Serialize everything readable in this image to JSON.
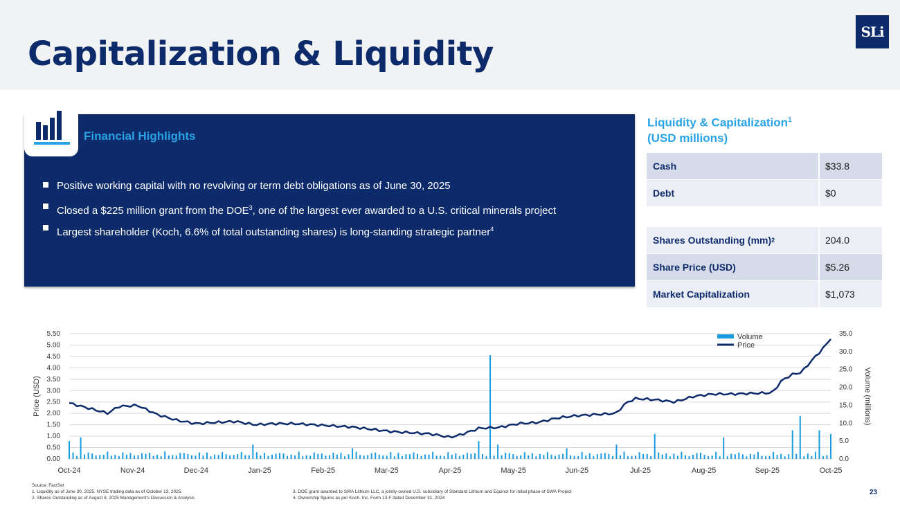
{
  "title": "Capitalization & Liquidity",
  "logo_text": "SLi",
  "highlights": {
    "title": "Financial Highlights",
    "bullets": [
      {
        "text": "Positive working capital with no revolving or term debt obligations as of June 30, 2025",
        "note": ""
      },
      {
        "text": "Closed a $225 million grant from the DOE",
        "note": "3",
        "text2": ", one of the largest ever awarded to a U.S. critical minerals project"
      },
      {
        "text": "Largest shareholder (Koch, 6.6% of total outstanding shares) is long-standing strategic partner",
        "note": "4"
      }
    ]
  },
  "liquidity": {
    "title_line1": "Liquidity & Capitalization",
    "title_note": "1",
    "title_line2": "(USD millions)",
    "table1": [
      {
        "label": "Cash",
        "value": "$33.8"
      },
      {
        "label": "Debt",
        "value": "$0"
      }
    ],
    "table2": [
      {
        "label": "Shares Outstanding (mm)",
        "note": "2",
        "value": "204.0"
      },
      {
        "label": "Share Price (USD)",
        "note": "",
        "value": "$5.26"
      },
      {
        "label": "Market Capitalization",
        "note": "",
        "value": "$1,073"
      }
    ]
  },
  "chart_data": {
    "type": "bar+line",
    "x_labels": [
      "Oct-24",
      "Nov-24",
      "Dec-24",
      "Jan-25",
      "Feb-25",
      "Mar-25",
      "Apr-25",
      "May-25",
      "Jun-25",
      "Jul-25",
      "Aug-25",
      "Sep-25",
      "Oct-25"
    ],
    "ylabel_left": "Price (USD)",
    "ylabel_right": "Volume (millions)",
    "left_ticks": [
      "0.00",
      "0.50",
      "1.00",
      "1.50",
      "2.00",
      "2.50",
      "3.00",
      "3.50",
      "4.00",
      "4.50",
      "5.00",
      "5.50"
    ],
    "right_ticks": [
      "0.0",
      "5.0",
      "10.0",
      "15.0",
      "20.0",
      "25.0",
      "30.0",
      "35.0"
    ],
    "ylim_left": [
      0,
      5.5
    ],
    "ylim_right": [
      0,
      35
    ],
    "legend": [
      "Volume",
      "Price"
    ],
    "legend_position": "top-right",
    "price_anchors": [
      [
        0,
        2.45
      ],
      [
        4,
        2.0
      ],
      [
        5,
        2.3
      ],
      [
        7,
        2.35
      ],
      [
        9,
        1.95
      ],
      [
        11,
        1.7
      ],
      [
        13,
        1.55
      ],
      [
        15,
        1.6
      ],
      [
        17,
        1.65
      ],
      [
        19,
        1.5
      ],
      [
        21,
        1.55
      ],
      [
        23,
        1.55
      ],
      [
        25,
        1.5
      ],
      [
        27,
        1.45
      ],
      [
        29,
        1.4
      ],
      [
        31,
        1.3
      ],
      [
        33,
        1.2
      ],
      [
        35,
        1.15
      ],
      [
        37,
        1.1
      ],
      [
        39,
        0.95
      ],
      [
        40,
        1.05
      ],
      [
        42,
        1.35
      ],
      [
        44,
        1.38
      ],
      [
        46,
        1.55
      ],
      [
        48,
        1.6
      ],
      [
        50,
        1.8
      ],
      [
        52,
        1.9
      ],
      [
        54,
        1.95
      ],
      [
        56,
        2.0
      ],
      [
        57,
        2.45
      ],
      [
        58,
        2.65
      ],
      [
        60,
        2.6
      ],
      [
        62,
        2.5
      ],
      [
        64,
        2.75
      ],
      [
        66,
        2.85
      ],
      [
        68,
        2.85
      ],
      [
        70,
        2.88
      ],
      [
        72,
        2.9
      ],
      [
        73,
        3.45
      ],
      [
        74,
        3.7
      ],
      [
        75,
        3.8
      ],
      [
        76,
        4.3
      ],
      [
        77,
        4.75
      ],
      [
        78,
        5.26
      ]
    ],
    "volume_spikes": [
      [
        0,
        5
      ],
      [
        1,
        6
      ],
      [
        19,
        4
      ],
      [
        29,
        3
      ],
      [
        42,
        5
      ],
      [
        43,
        29
      ],
      [
        44,
        4
      ],
      [
        51,
        3
      ],
      [
        56,
        4
      ],
      [
        60,
        7
      ],
      [
        67,
        6
      ],
      [
        74,
        8
      ],
      [
        75,
        12
      ],
      [
        77,
        8
      ],
      [
        78,
        7
      ]
    ],
    "volume_base": 1.6,
    "colors": {
      "volume": "#1a9be0",
      "price": "#0d2b6b"
    }
  },
  "footnotes": {
    "source": "Source: FactSet",
    "n1": "1.   Liquidity as of June 30, 2025. NYSE trading data as of October 13, 2025.",
    "n2": "2.   Shares Outstanding as of August 8, 2025 Management's Discussion & Analysis",
    "n3": "3.   DOE grant awarded to SWA Lithium LLC, a jointly-owned U.S. subsidiary of Standard Lithium and Equinor for initial phase of SWA Project",
    "n4": "4.   Ownership figures as per Koch, Inc. Form 13-F dated December 31, 2024"
  },
  "page_number": "23",
  "colors": {
    "navy": "#0d2b6b",
    "accent": "#29a3e6"
  }
}
